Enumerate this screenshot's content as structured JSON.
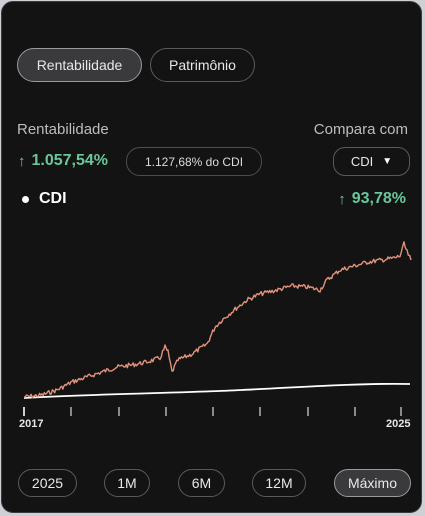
{
  "tabs": [
    {
      "label": "Rentabilidade",
      "active": true
    },
    {
      "label": "Patrimônio",
      "active": false
    }
  ],
  "summary": {
    "title": "Rentabilidade",
    "return_value": "1.057,54%",
    "return_direction": "up",
    "comparison_badge": "1.127,68% do CDI",
    "compare_label": "Compara com",
    "compare_selected": "CDI"
  },
  "benchmark": {
    "name": "CDI",
    "value": "93,78%",
    "direction": "up"
  },
  "axis": {
    "start_label": "2017",
    "end_label": "2025"
  },
  "periods": [
    {
      "label": "2025",
      "active": false
    },
    {
      "label": "1M",
      "active": false
    },
    {
      "label": "6M",
      "active": false
    },
    {
      "label": "12M",
      "active": false
    },
    {
      "label": "Máximo",
      "active": true
    }
  ],
  "colors": {
    "portfolio_line": "#e0937a",
    "benchmark_line": "#ffffff",
    "positive": "#69c79a",
    "background": "#141313"
  }
}
